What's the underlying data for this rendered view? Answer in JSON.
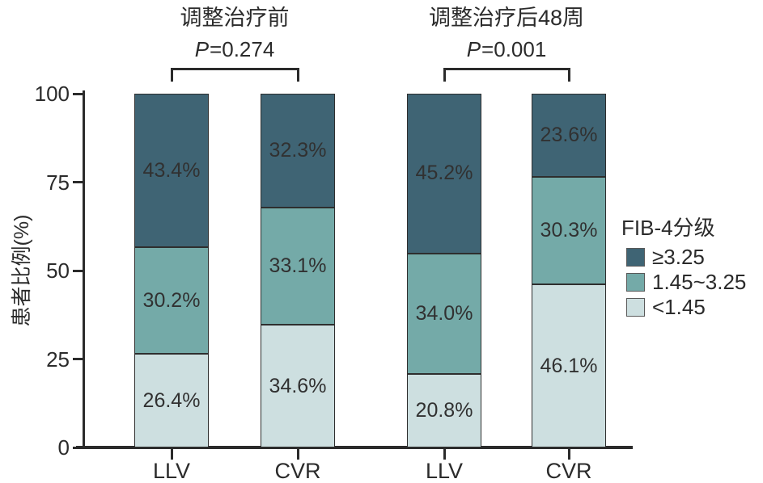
{
  "chart_data": {
    "type": "stacked_bar",
    "ylabel": "患者比例(%)",
    "ylim": [
      0,
      100
    ],
    "y_ticks": [
      0,
      25,
      50,
      75,
      100
    ],
    "grid": false,
    "legend_position": "right",
    "legend": {
      "title": "FIB-4分级",
      "items": [
        {
          "label": "≥3.25",
          "color": "#3f6474"
        },
        {
          "label": "1.45~3.25",
          "color": "#74aaa8"
        },
        {
          "label": "<1.45",
          "color": "#cddfe0"
        }
      ]
    },
    "groups": [
      {
        "title": "调整治疗前",
        "p_label": "P=0.274",
        "bars": [
          {
            "category": "LLV",
            "segments": [
              {
                "label": "≥3.25",
                "value": 43.4
              },
              {
                "label": "1.45~3.25",
                "value": 30.2
              },
              {
                "label": "<1.45",
                "value": 26.4
              }
            ]
          },
          {
            "category": "CVR",
            "segments": [
              {
                "label": "≥3.25",
                "value": 32.3
              },
              {
                "label": "1.45~3.25",
                "value": 33.1
              },
              {
                "label": "<1.45",
                "value": 34.6
              }
            ]
          }
        ]
      },
      {
        "title": "调整治疗后48周",
        "p_label": "P=0.001",
        "bars": [
          {
            "category": "LLV",
            "segments": [
              {
                "label": "≥3.25",
                "value": 45.2
              },
              {
                "label": "1.45~3.25",
                "value": 34.0
              },
              {
                "label": "<1.45",
                "value": 20.8
              }
            ]
          },
          {
            "category": "CVR",
            "segments": [
              {
                "label": "≥3.25",
                "value": 23.6
              },
              {
                "label": "1.45~3.25",
                "value": 30.3
              },
              {
                "label": "<1.45",
                "value": 46.1
              }
            ]
          }
        ]
      }
    ]
  }
}
